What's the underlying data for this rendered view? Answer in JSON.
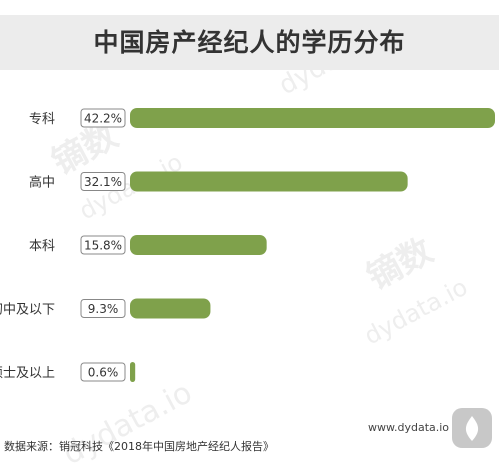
{
  "title": "中国房产经纪人的学历分布",
  "chart_data": {
    "type": "bar",
    "orientation": "horizontal",
    "title": "中国房产经纪人的学历分布",
    "categories": [
      "专科",
      "高中",
      "本科",
      "初中及以下",
      "硕士及以上"
    ],
    "values": [
      42.2,
      32.1,
      15.8,
      9.3,
      0.6
    ],
    "value_labels": [
      "42.2%",
      "32.1%",
      "15.8%",
      "9.3%",
      "0.6%"
    ],
    "xlim": [
      0,
      42.2
    ],
    "grid": false,
    "legend": "none",
    "bar_color": "#7fa14b"
  },
  "watermark": {
    "brand_cn": "镝数",
    "brand_en": "dydata.io"
  },
  "footer": {
    "source": "数据来源：销冠科技《2018年中国房地产经纪人报告》",
    "url": "www.dydata.io"
  },
  "colors": {
    "bar": "#7fa14b",
    "title_bg": "#ececec",
    "text": "#333333",
    "watermark": "#eeeeee"
  }
}
